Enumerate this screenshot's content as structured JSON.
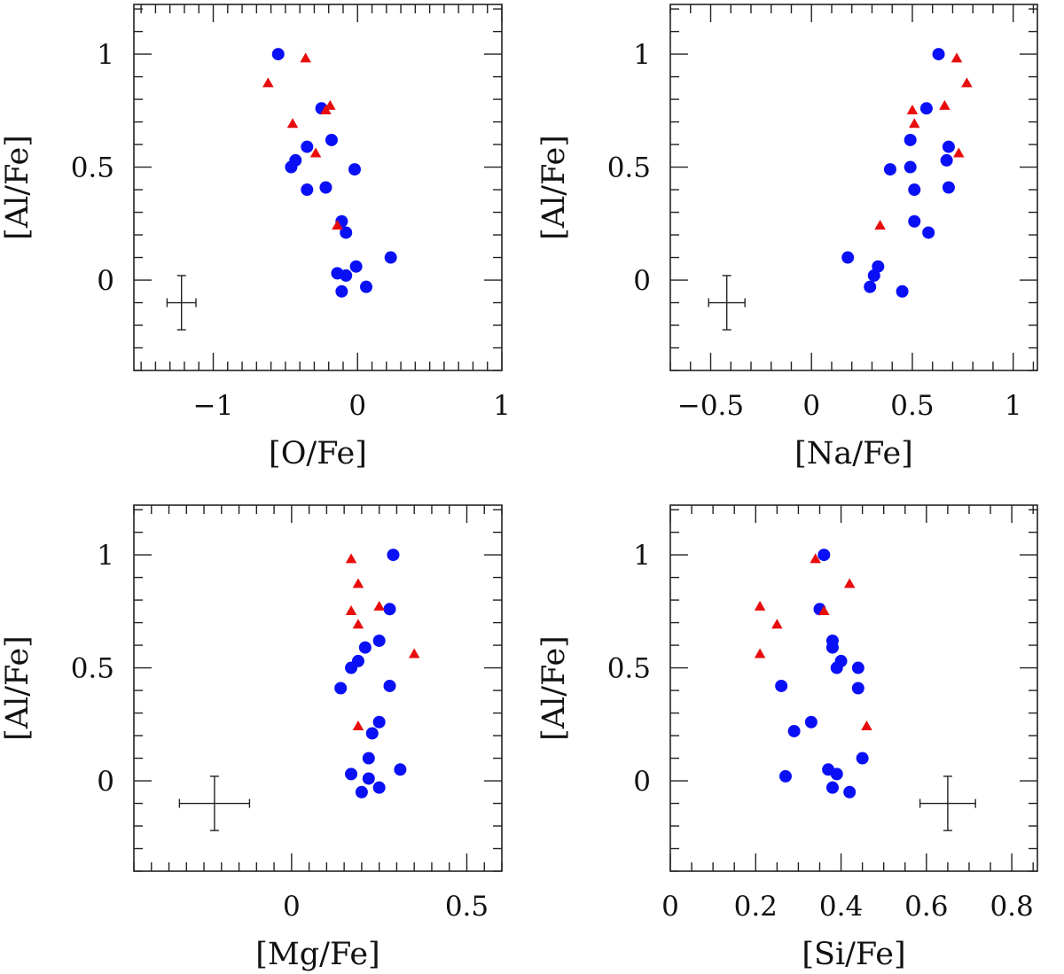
{
  "colors": {
    "circle": "#0a10f5",
    "triangle": "#e80c0c",
    "axis": "#222222"
  },
  "chart_data": [
    {
      "type": "scatter",
      "xlabel": "[O/Fe]",
      "ylabel": "[Al/Fe]",
      "xlim": [
        -1.55,
        1.0
      ],
      "ylim": [
        -0.4,
        1.22
      ],
      "xticks": [
        -1,
        0,
        1
      ],
      "xtick_labels": [
        "−1",
        "0",
        "1"
      ],
      "yticks": [
        0,
        0.5,
        1
      ],
      "ytick_labels": [
        "0",
        "0.5",
        "1"
      ],
      "x_minor_step": 0.1,
      "y_minor_step": 0.1,
      "errorbar": {
        "x": -1.22,
        "y": -0.1,
        "xerr": 0.1,
        "yerr": 0.12
      },
      "series": [
        {
          "marker": "circle",
          "points": [
            [
              -0.55,
              1.0
            ],
            [
              -0.25,
              0.76
            ],
            [
              -0.18,
              0.62
            ],
            [
              -0.35,
              0.59
            ],
            [
              -0.43,
              0.53
            ],
            [
              -0.46,
              0.5
            ],
            [
              -0.02,
              0.49
            ],
            [
              -0.22,
              0.41
            ],
            [
              -0.35,
              0.4
            ],
            [
              -0.11,
              0.26
            ],
            [
              -0.08,
              0.21
            ],
            [
              0.23,
              0.1
            ],
            [
              -0.01,
              0.06
            ],
            [
              -0.14,
              0.03
            ],
            [
              -0.08,
              0.02
            ],
            [
              0.06,
              -0.03
            ],
            [
              -0.11,
              -0.05
            ]
          ]
        },
        {
          "marker": "triangle",
          "points": [
            [
              -0.62,
              0.87
            ],
            [
              -0.36,
              0.98
            ],
            [
              -0.19,
              0.77
            ],
            [
              -0.22,
              0.75
            ],
            [
              -0.45,
              0.69
            ],
            [
              -0.29,
              0.56
            ],
            [
              -0.14,
              0.24
            ]
          ]
        }
      ]
    },
    {
      "type": "scatter",
      "xlabel": "[Na/Fe]",
      "ylabel": "[Al/Fe]",
      "xlim": [
        -0.7,
        1.12
      ],
      "ylim": [
        -0.4,
        1.22
      ],
      "xticks": [
        -0.5,
        0,
        0.5,
        1
      ],
      "xtick_labels": [
        "−0.5",
        "0",
        "0.5",
        "1"
      ],
      "yticks": [
        0,
        0.5,
        1
      ],
      "ytick_labels": [
        "0",
        "0.5",
        "1"
      ],
      "x_minor_step": 0.1,
      "y_minor_step": 0.1,
      "errorbar": {
        "x": -0.42,
        "y": -0.1,
        "xerr": 0.09,
        "yerr": 0.12
      },
      "series": [
        {
          "marker": "circle",
          "points": [
            [
              0.63,
              1.0
            ],
            [
              0.57,
              0.76
            ],
            [
              0.49,
              0.62
            ],
            [
              0.68,
              0.59
            ],
            [
              0.67,
              0.53
            ],
            [
              0.49,
              0.5
            ],
            [
              0.39,
              0.49
            ],
            [
              0.51,
              0.4
            ],
            [
              0.68,
              0.41
            ],
            [
              0.51,
              0.26
            ],
            [
              0.58,
              0.21
            ],
            [
              0.18,
              0.1
            ],
            [
              0.33,
              0.06
            ],
            [
              0.31,
              0.02
            ],
            [
              0.29,
              -0.03
            ],
            [
              0.45,
              -0.05
            ]
          ]
        },
        {
          "marker": "triangle",
          "points": [
            [
              0.72,
              0.98
            ],
            [
              0.77,
              0.87
            ],
            [
              0.66,
              0.77
            ],
            [
              0.5,
              0.75
            ],
            [
              0.51,
              0.69
            ],
            [
              0.73,
              0.56
            ],
            [
              0.34,
              0.24
            ]
          ]
        }
      ]
    },
    {
      "type": "scatter",
      "xlabel": "[Mg/Fe]",
      "ylabel": "[Al/Fe]",
      "xlim": [
        -0.45,
        0.6
      ],
      "ylim": [
        -0.4,
        1.22
      ],
      "xticks": [
        0,
        0.5
      ],
      "xtick_labels": [
        "0",
        "0.5"
      ],
      "yticks": [
        0,
        0.5,
        1
      ],
      "ytick_labels": [
        "0",
        "0.5",
        "1"
      ],
      "x_minor_step": 0.05,
      "y_minor_step": 0.1,
      "errorbar": {
        "x": -0.22,
        "y": -0.1,
        "xerr": 0.1,
        "yerr": 0.12
      },
      "series": [
        {
          "marker": "circle",
          "points": [
            [
              0.29,
              1.0
            ],
            [
              0.28,
              0.76
            ],
            [
              0.25,
              0.62
            ],
            [
              0.21,
              0.59
            ],
            [
              0.19,
              0.53
            ],
            [
              0.17,
              0.5
            ],
            [
              0.28,
              0.42
            ],
            [
              0.14,
              0.41
            ],
            [
              0.25,
              0.26
            ],
            [
              0.23,
              0.21
            ],
            [
              0.22,
              0.1
            ],
            [
              0.31,
              0.05
            ],
            [
              0.17,
              0.03
            ],
            [
              0.22,
              0.01
            ],
            [
              0.25,
              -0.03
            ],
            [
              0.2,
              -0.05
            ]
          ]
        },
        {
          "marker": "triangle",
          "points": [
            [
              0.17,
              0.98
            ],
            [
              0.19,
              0.87
            ],
            [
              0.25,
              0.77
            ],
            [
              0.17,
              0.75
            ],
            [
              0.19,
              0.69
            ],
            [
              0.35,
              0.56
            ],
            [
              0.19,
              0.24
            ]
          ]
        }
      ]
    },
    {
      "type": "scatter",
      "xlabel": "[Si/Fe]",
      "ylabel": "[Al/Fe]",
      "xlim": [
        0.0,
        0.86
      ],
      "ylim": [
        -0.4,
        1.22
      ],
      "xticks": [
        0,
        0.2,
        0.4,
        0.6,
        0.8
      ],
      "xtick_labels": [
        "0",
        "0.2",
        "0.4",
        "0.6",
        "0.8"
      ],
      "yticks": [
        0,
        0.5,
        1
      ],
      "ytick_labels": [
        "0",
        "0.5",
        "1"
      ],
      "x_minor_step": 0.05,
      "y_minor_step": 0.1,
      "errorbar": {
        "x": 0.65,
        "y": -0.1,
        "xerr": 0.065,
        "yerr": 0.12
      },
      "series": [
        {
          "marker": "circle",
          "points": [
            [
              0.36,
              1.0
            ],
            [
              0.35,
              0.76
            ],
            [
              0.38,
              0.62
            ],
            [
              0.38,
              0.59
            ],
            [
              0.4,
              0.53
            ],
            [
              0.39,
              0.5
            ],
            [
              0.44,
              0.5
            ],
            [
              0.26,
              0.42
            ],
            [
              0.44,
              0.41
            ],
            [
              0.33,
              0.26
            ],
            [
              0.29,
              0.22
            ],
            [
              0.45,
              0.1
            ],
            [
              0.37,
              0.05
            ],
            [
              0.39,
              0.03
            ],
            [
              0.27,
              0.02
            ],
            [
              0.38,
              -0.03
            ],
            [
              0.42,
              -0.05
            ]
          ]
        },
        {
          "marker": "triangle",
          "points": [
            [
              0.34,
              0.98
            ],
            [
              0.42,
              0.87
            ],
            [
              0.21,
              0.77
            ],
            [
              0.36,
              0.75
            ],
            [
              0.25,
              0.69
            ],
            [
              0.21,
              0.56
            ],
            [
              0.46,
              0.24
            ]
          ]
        }
      ]
    }
  ]
}
